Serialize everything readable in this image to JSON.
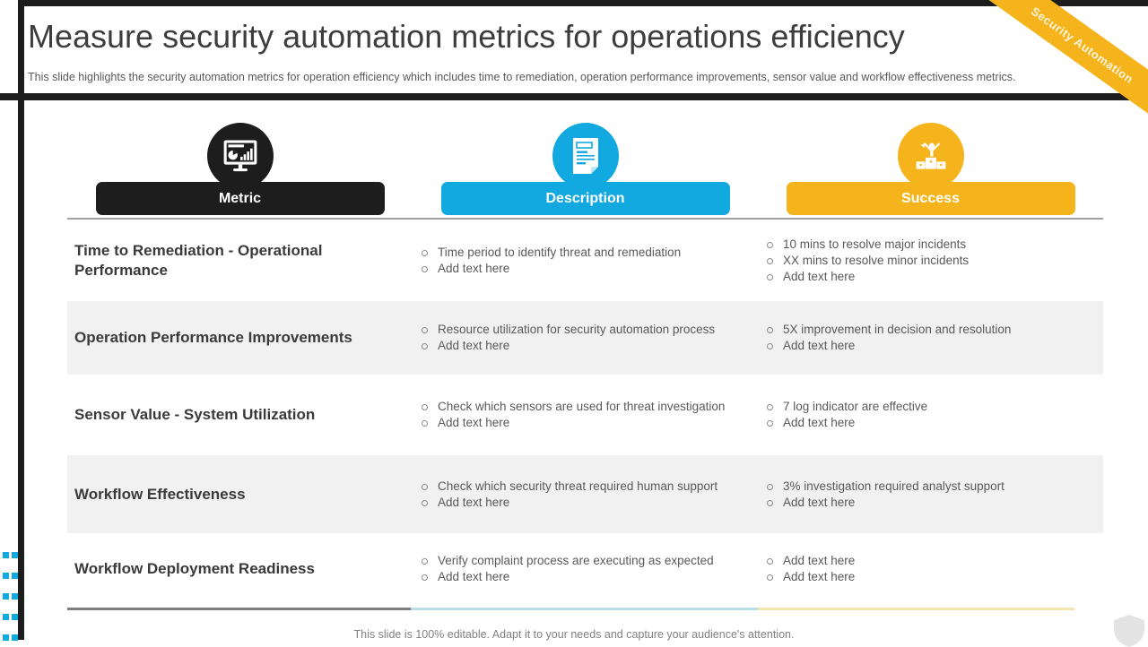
{
  "slide": {
    "title": "Measure security automation metrics for operations efficiency",
    "subtitle": "This slide highlights the security automation metrics for operation efficiency which includes time to remediation, operation performance improvements, sensor value and workflow effectiveness metrics.",
    "ribbon_label": "Security Automation",
    "footer": "This slide is 100% editable. Adapt it to your needs and capture your audience's attention."
  },
  "columns": [
    {
      "label": "Metric",
      "icon": "dashboard-monitor-icon",
      "color": "#1d1d1d"
    },
    {
      "label": "Description",
      "icon": "document-icon",
      "color": "#12a9e0"
    },
    {
      "label": "Success",
      "icon": "winner-podium-icon",
      "color": "#f5b41c"
    }
  ],
  "rows": [
    {
      "metric": "Time to Remediation - Operational Performance",
      "description": [
        "Time period to identify threat and remediation",
        "Add text here"
      ],
      "success": [
        "10 mins to resolve major incidents",
        "XX mins to resolve minor incidents",
        "Add text here"
      ]
    },
    {
      "metric": "Operation Performance Improvements",
      "description": [
        "Resource utilization for security automation process",
        "Add text here"
      ],
      "success": [
        "5X improvement in decision and resolution",
        "Add text here"
      ]
    },
    {
      "metric": "Sensor Value - System Utilization",
      "description": [
        "Check which sensors are used for threat investigation",
        "Add text here"
      ],
      "success": [
        "7 log indicator are effective",
        "Add text here"
      ]
    },
    {
      "metric": "Workflow Effectiveness",
      "description": [
        "Check which security threat required human support",
        "Add text here"
      ],
      "success": [
        "3% investigation required analyst support",
        "Add text here"
      ]
    },
    {
      "metric": "Workflow Deployment Readiness",
      "description": [
        "Verify complaint process are executing as expected",
        "Add text here"
      ],
      "success": [
        "Add text here",
        "Add text here"
      ]
    }
  ],
  "theme": {
    "dark": "#1d1d1d",
    "blue": "#12a9e0",
    "yellow": "#f5b41c",
    "row_alt": "#f1f1f1",
    "divider_gray": "#7f7f7f",
    "divider_blue": "#b7dde7",
    "divider_yellow": "#f2e5ae"
  }
}
